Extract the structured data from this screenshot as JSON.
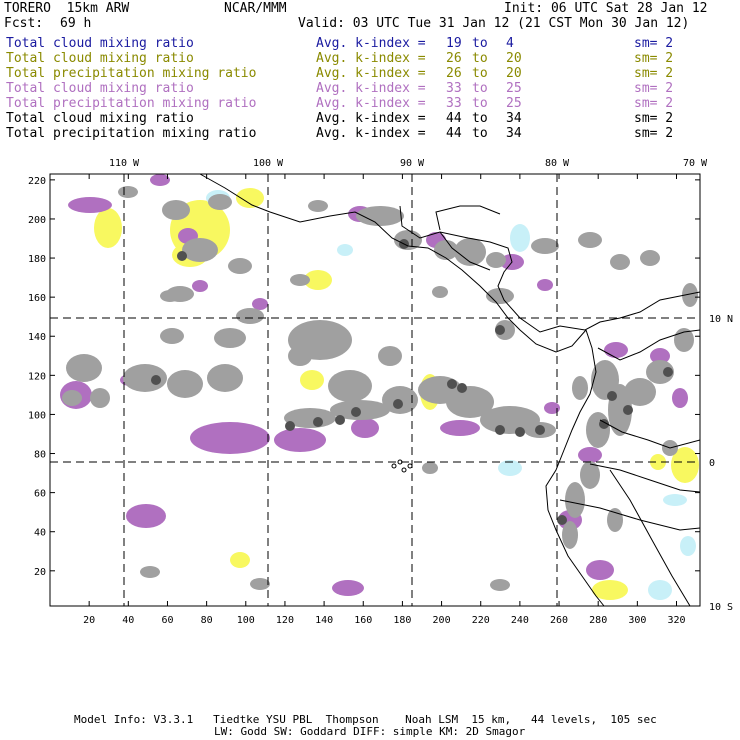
{
  "header": {
    "model": "TORERO  15km ARW",
    "org": "NCAR/MMM",
    "init": "Init: 06 UTC Sat 28 Jan 12",
    "fcst_label": "Fcst:",
    "fcst_value": "69 h",
    "valid": "Valid: 03 UTC Tue 31 Jan 12 (21 CST Mon 30 Jan 12)"
  },
  "legend": [
    {
      "field": "Total cloud mixing ratio",
      "kindex": "Avg. k-index =",
      "from": "19",
      "to_word": "to",
      "to": "4",
      "sm": "sm= 2",
      "color": "#1a1aa0"
    },
    {
      "field": "Total cloud mixing ratio",
      "kindex": "Avg. k-index =",
      "from": "26",
      "to_word": "to",
      "to": "20",
      "sm": "sm= 2",
      "color": "#8a8a00"
    },
    {
      "field": "Total precipitation mixing ratio",
      "kindex": "Avg. k-index =",
      "from": "26",
      "to_word": "to",
      "to": "20",
      "sm": "sm= 2",
      "color": "#8a8a00"
    },
    {
      "field": "Total cloud mixing ratio",
      "kindex": "Avg. k-index =",
      "from": "33",
      "to_word": "to",
      "to": "25",
      "sm": "sm= 2",
      "color": "#b070c0"
    },
    {
      "field": "Total precipitation mixing ratio",
      "kindex": "Avg. k-index =",
      "from": "33",
      "to_word": "to",
      "to": "25",
      "sm": "sm= 2",
      "color": "#b070c0"
    },
    {
      "field": "Total cloud mixing ratio",
      "kindex": "Avg. k-index =",
      "from": "44",
      "to_word": "to",
      "to": "34",
      "sm": "sm= 2",
      "color": "#000000"
    },
    {
      "field": "Total precipitation mixing ratio",
      "kindex": "Avg. k-index =",
      "from": "44",
      "to_word": "to",
      "to": "34",
      "sm": "sm= 2",
      "color": "#000000"
    }
  ],
  "map": {
    "top_lon_labels": [
      "110 W",
      "100 W",
      "90 W",
      "80 W",
      "70 W"
    ],
    "right_lat_labels": [
      "10 N",
      "0",
      "10 S"
    ],
    "y_ticks": [
      "220",
      "200",
      "180",
      "160",
      "140",
      "120",
      "100",
      "80",
      "60",
      "40",
      "20"
    ],
    "x_ticks": [
      "20",
      "40",
      "60",
      "80",
      "100",
      "120",
      "140",
      "160",
      "180",
      "200",
      "220",
      "240",
      "260",
      "280",
      "300",
      "320"
    ],
    "colors": {
      "gray": "#a0a0a0",
      "dark": "#505050",
      "purple": "#b070c0",
      "yellow": "#f8f860",
      "cyan": "#c8f0f8"
    }
  },
  "footer": {
    "line1": "Model Info: V3.3.1   Tiedtke YSU PBL  Thompson    Noah LSM  15 km,   44 levels,  105 sec",
    "line2": "LW: Godd SW: Goddard DIFF: simple KM: 2D Smagor"
  }
}
